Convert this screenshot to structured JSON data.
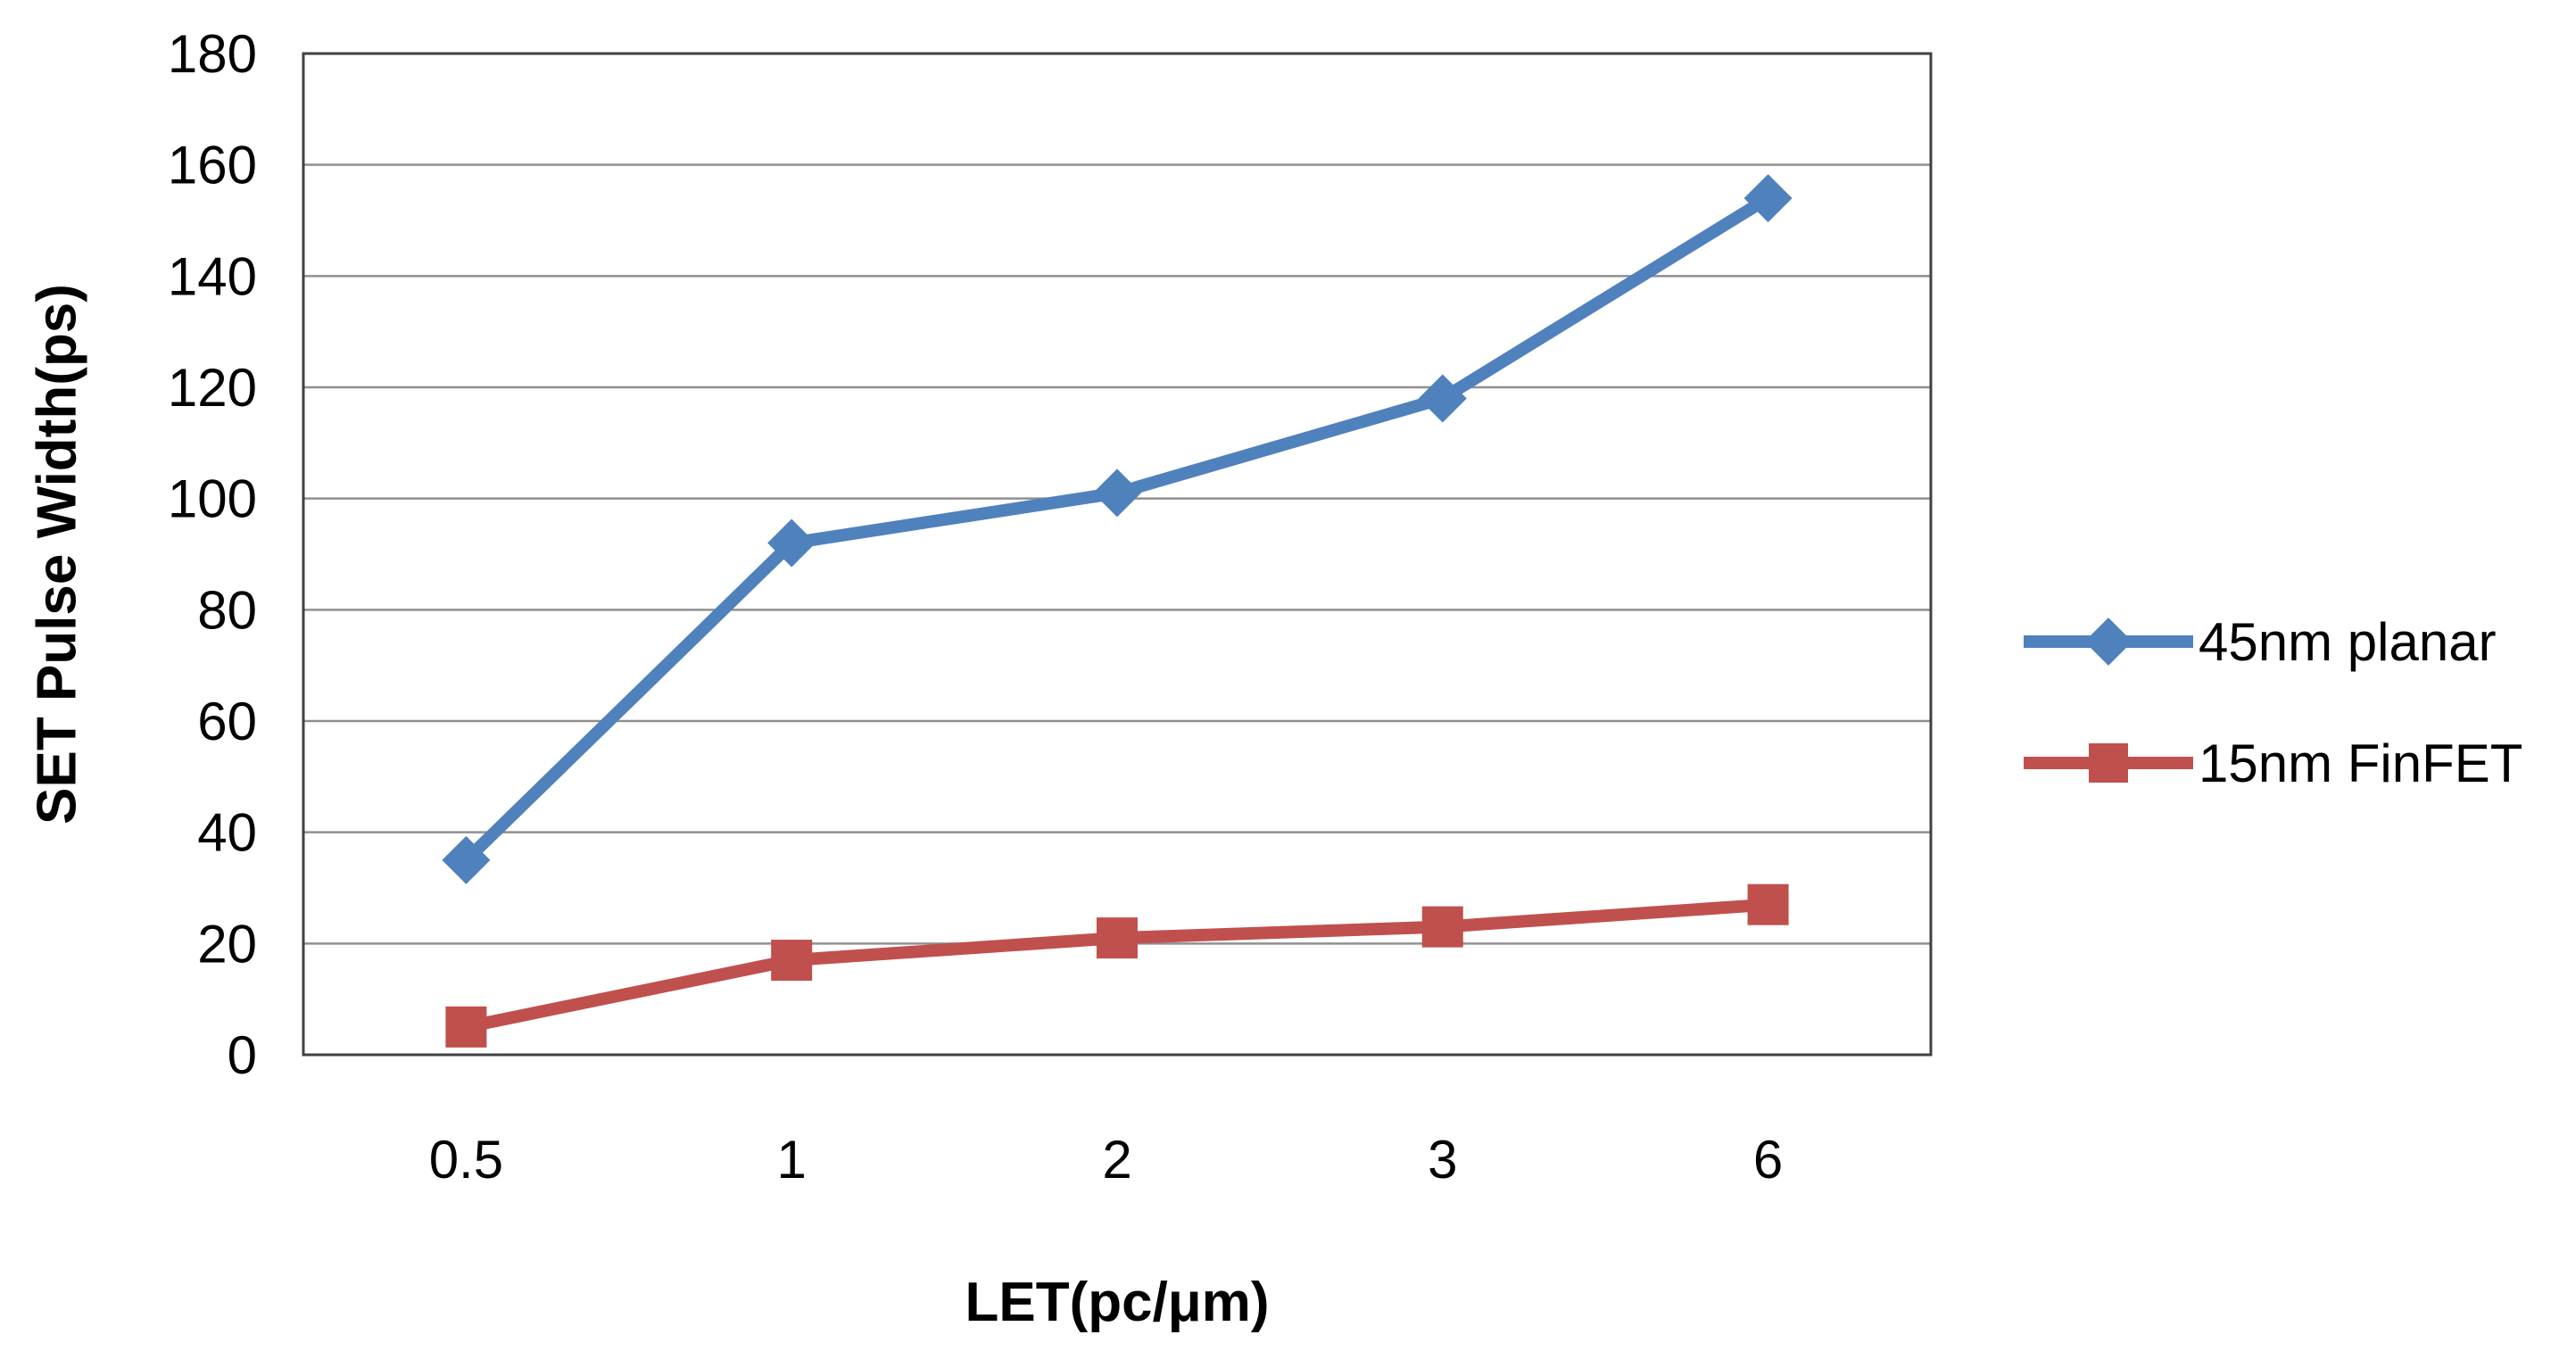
{
  "chart_data": {
    "type": "line",
    "title": "",
    "categories": [
      "0.5",
      "1",
      "2",
      "3",
      "6"
    ],
    "series": [
      {
        "name": "45nm planar",
        "color": "#4F81BD",
        "marker": "diamond",
        "values": [
          35,
          92,
          101,
          118,
          154
        ]
      },
      {
        "name": "15nm FinFET",
        "color": "#C0504D",
        "marker": "square",
        "values": [
          5,
          17,
          21,
          23,
          27
        ]
      }
    ],
    "xlabel": "LET(pc/μm)",
    "ylabel": "SET Pulse Width(ps)",
    "ylim": [
      0,
      180
    ],
    "ytick_step": 20,
    "yticks": [
      0,
      20,
      40,
      60,
      80,
      100,
      120,
      140,
      160,
      180
    ],
    "grid": true,
    "legend_position": "right"
  },
  "colors": {
    "grid": "#909090",
    "border": "#404040",
    "text": "#000000",
    "background": "#ffffff"
  }
}
